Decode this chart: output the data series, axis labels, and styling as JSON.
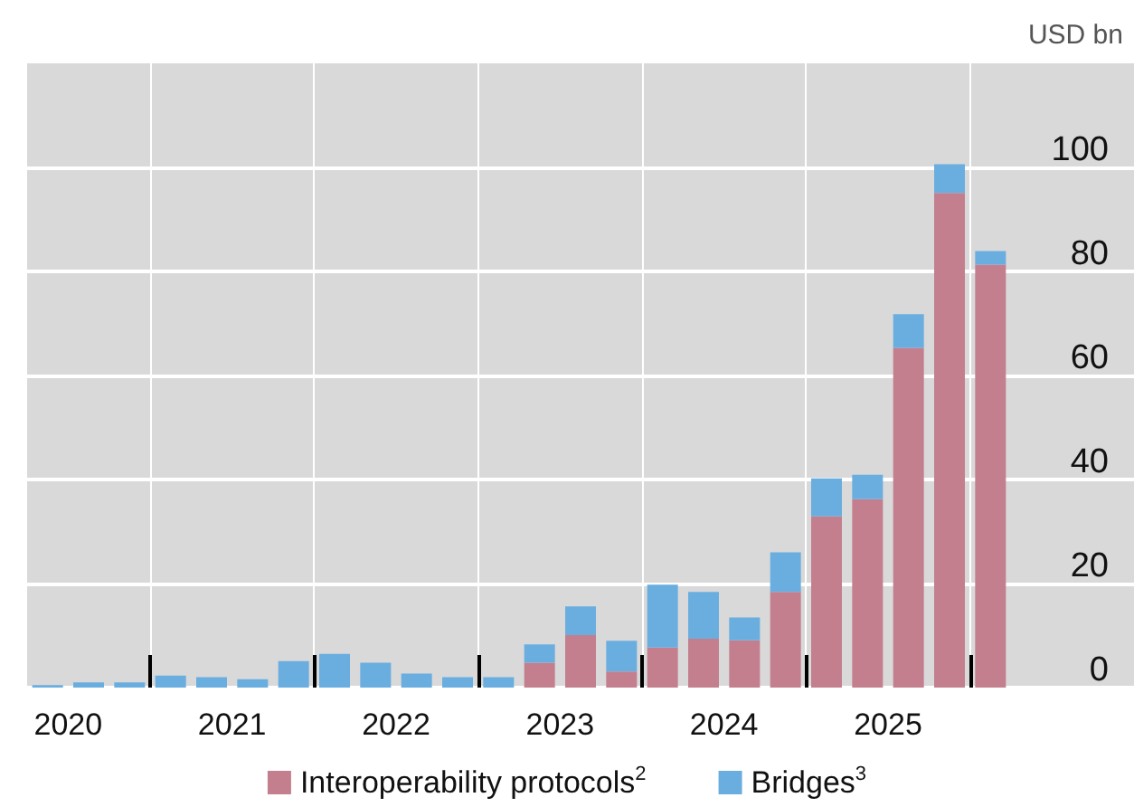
{
  "chart_data": {
    "type": "bar",
    "stacked": true,
    "ylabel": "USD bn",
    "x": [
      2020.375,
      2020.625,
      2020.875,
      2021.125,
      2021.375,
      2021.625,
      2021.875,
      2022.125,
      2022.375,
      2022.625,
      2022.875,
      2023.125,
      2023.375,
      2023.625,
      2023.875,
      2024.125,
      2024.375,
      2024.625,
      2024.875,
      2025.125,
      2025.375,
      2025.625,
      2025.875,
      2026.125
    ],
    "series": [
      {
        "name": "Interoperability protocols$^{2}$",
        "color": "#c47f8f",
        "values": [
          0,
          0,
          0,
          0,
          0,
          0,
          0,
          0,
          0,
          0,
          0,
          0,
          4.8,
          10.1,
          3.1,
          7.7,
          9.4,
          9.1,
          18.4,
          32.9,
          36.2,
          65.3,
          95.1,
          81.3
        ]
      },
      {
        "name": "Bridges$^{3}$",
        "color": "#6aaee0",
        "values": [
          0.5,
          1,
          1,
          2.3,
          2,
          1.6,
          5.1,
          6.5,
          4.8,
          2.7,
          2,
          2,
          3.5,
          5.5,
          5.9,
          12.1,
          9,
          4.4,
          7.6,
          7.3,
          4.7,
          6.5,
          5.5,
          2.6
        ]
      }
    ],
    "xlim": [
      2020.25,
      2027
    ],
    "xticks": [
      {
        "value": 2020.5,
        "label": "2020"
      },
      {
        "value": 2021,
        "label": null
      },
      {
        "value": 2021.5,
        "label": "2021"
      },
      {
        "value": 2022,
        "label": null
      },
      {
        "value": 2022.5,
        "label": "2022"
      },
      {
        "value": 2023,
        "label": null
      },
      {
        "value": 2023.5,
        "label": "2023"
      },
      {
        "value": 2024,
        "label": null
      },
      {
        "value": 2024.5,
        "label": "2024"
      },
      {
        "value": 2025,
        "label": null
      },
      {
        "value": 2025.5,
        "label": "2025"
      },
      {
        "value": 2026,
        "label": null
      }
    ],
    "ylim": [
      0,
      120
    ],
    "yticks": [
      0,
      20,
      40,
      60,
      80,
      100
    ],
    "grid": true,
    "legend": "bottom"
  }
}
